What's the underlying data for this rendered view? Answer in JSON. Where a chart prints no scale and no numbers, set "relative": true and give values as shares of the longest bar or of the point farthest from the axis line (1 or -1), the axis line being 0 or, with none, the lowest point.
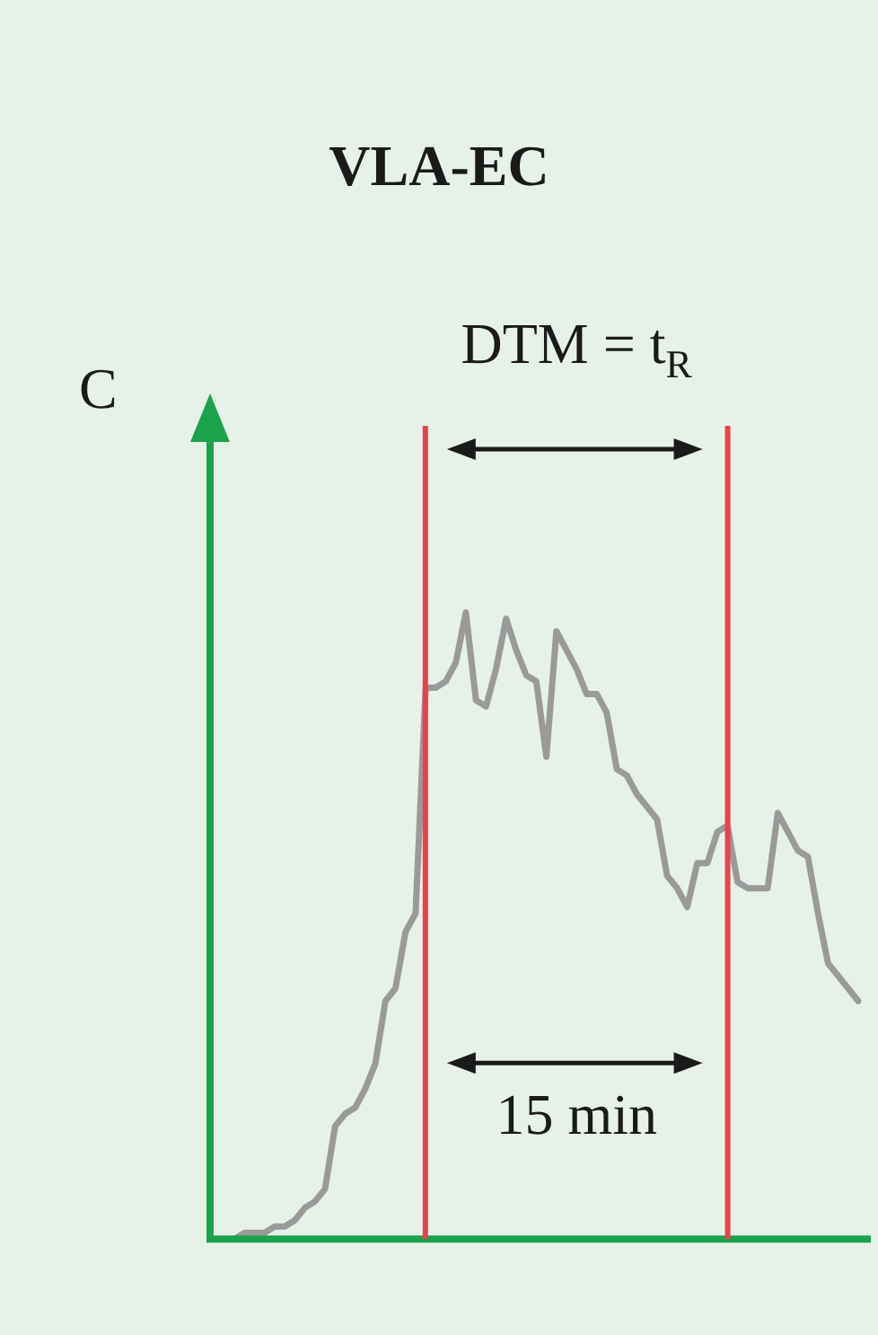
{
  "chart_data": {
    "type": "line",
    "title": "VLA-EC",
    "ylabel": "C",
    "annotations": [
      "DTM = t$_{R}$",
      "15 min"
    ],
    "relative": true,
    "categories": [
      null,
      null,
      null,
      null,
      null,
      null,
      null,
      null,
      null,
      null,
      null,
      null,
      null,
      null,
      null,
      null,
      null,
      null,
      null,
      null,
      null,
      null,
      null,
      null,
      null,
      null,
      null,
      null,
      null,
      null,
      null,
      null,
      null,
      null,
      null,
      null,
      null,
      null,
      null,
      null,
      null,
      null,
      null,
      null,
      null,
      null,
      null,
      null,
      null,
      null,
      null,
      null,
      null,
      null,
      null,
      null,
      null,
      null,
      null,
      null,
      null,
      null,
      null,
      null
    ],
    "series": [
      {
        "color": "#9a9a9a",
        "values": [
          0.0,
          0.0,
          0.01,
          0.01,
          0.01,
          0.02,
          0.02,
          0.03,
          0.05,
          0.06,
          0.08,
          0.18,
          0.2,
          0.21,
          0.24,
          0.28,
          0.38,
          0.4,
          0.49,
          0.52,
          0.88,
          0.88,
          0.89,
          0.92,
          1.0,
          0.86,
          0.85,
          0.91,
          0.99,
          0.94,
          0.9,
          0.89,
          0.77,
          0.97,
          0.94,
          0.91,
          0.87,
          0.87,
          0.84,
          0.75,
          0.74,
          0.71,
          0.69,
          0.67,
          0.58,
          0.56,
          0.53,
          0.6,
          0.6,
          0.65,
          0.66,
          0.57,
          0.56,
          0.56,
          0.56,
          0.68,
          0.65,
          0.62,
          0.61,
          0.52,
          0.44,
          0.42,
          0.4,
          0.38
        ]
      }
    ]
  }
}
